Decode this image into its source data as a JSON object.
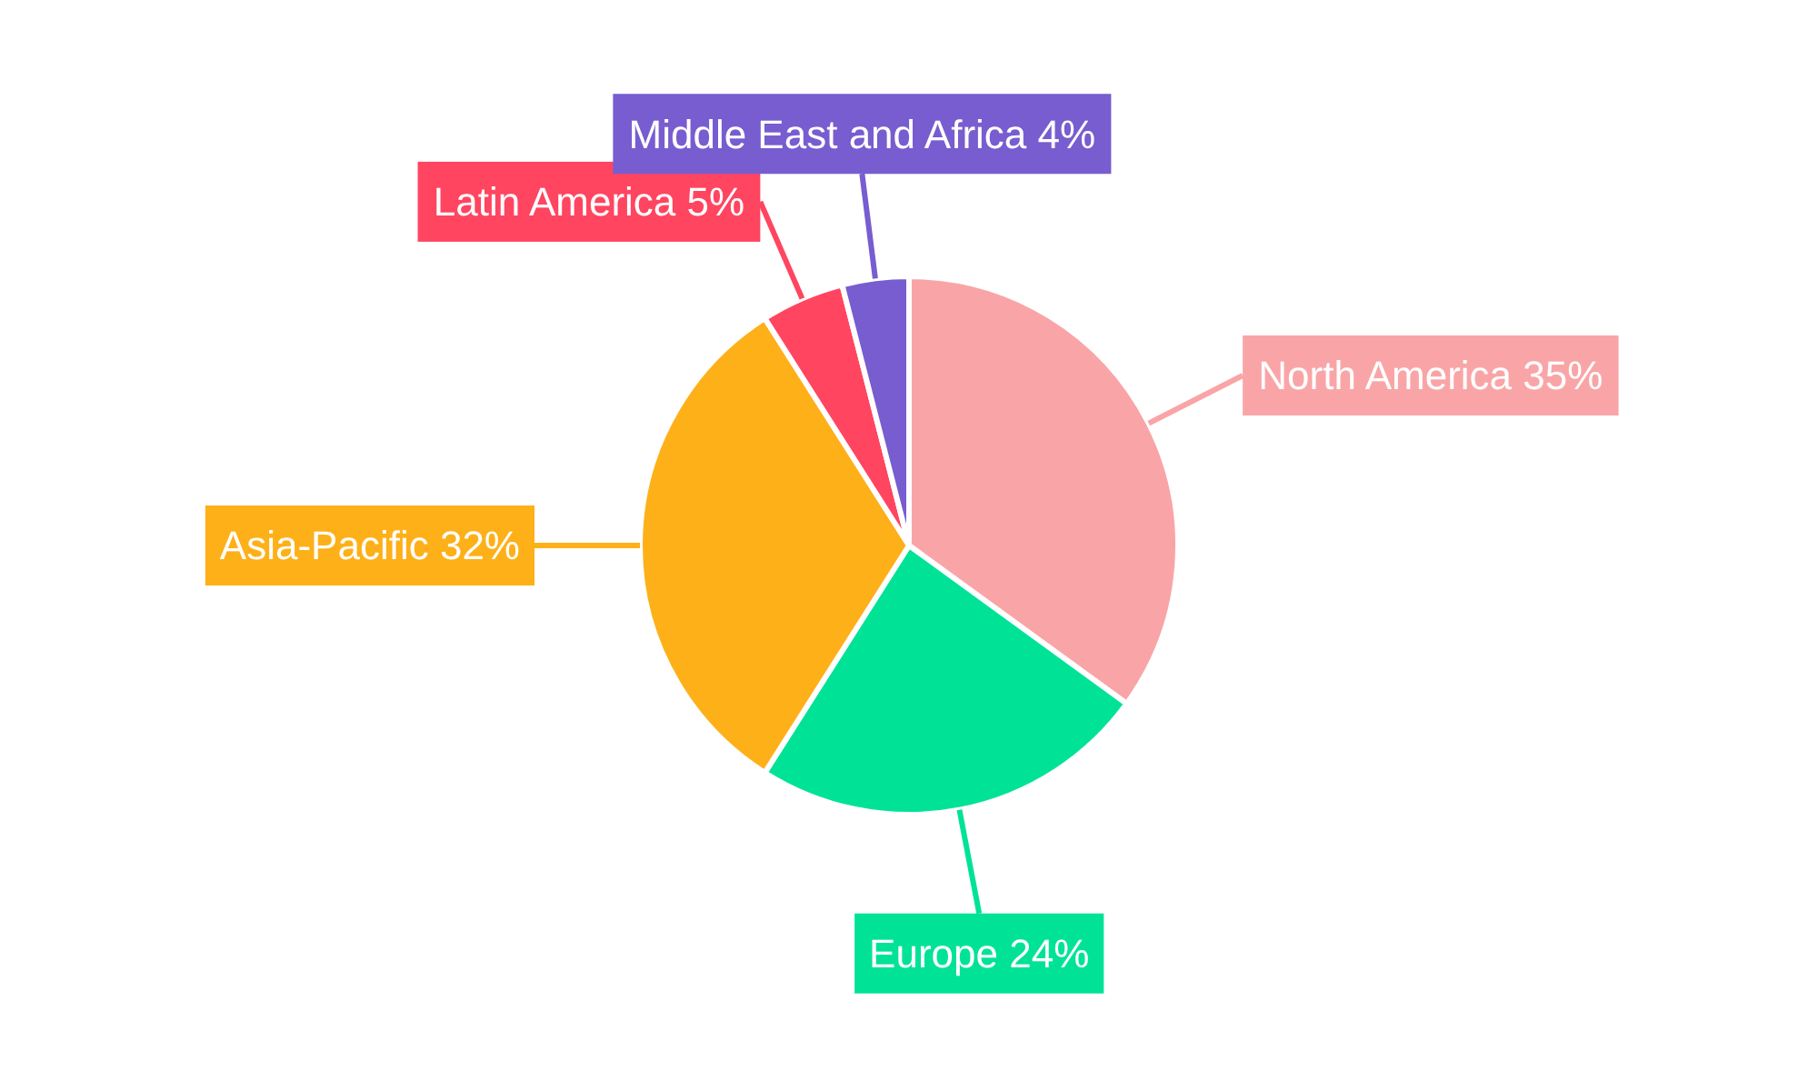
{
  "chart_data": {
    "type": "pie",
    "categories": [
      "North America",
      "Europe",
      "Asia-Pacific",
      "Latin America",
      "Middle East and Africa"
    ],
    "values": [
      35,
      24,
      32,
      5,
      4
    ],
    "colors": [
      "#f9a5a7",
      "#00e396",
      "#feb019",
      "#ff4560",
      "#775dd0"
    ],
    "value_labels": [
      "35%",
      "24%",
      "32%",
      "5%",
      "4%"
    ]
  }
}
